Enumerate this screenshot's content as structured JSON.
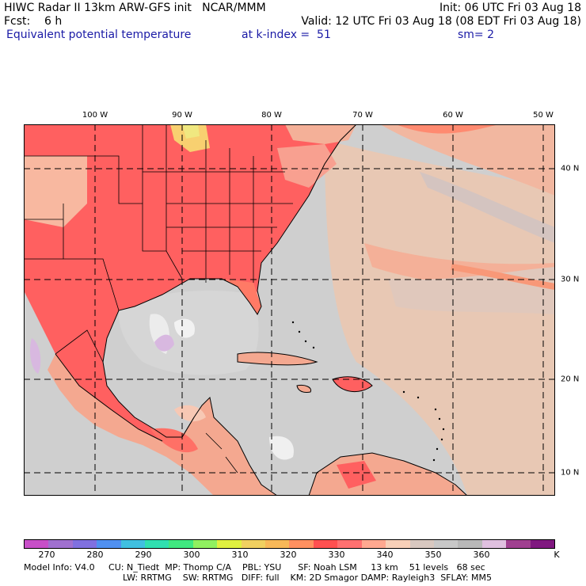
{
  "header": {
    "line1_left": "HIWC Radar II 13km ARW-GFS init   NCAR/MMM",
    "line1_right": "Init: 06 UTC Fri 03 Aug 18",
    "line2_left": "Fcst:    6 h",
    "line2_right": "Valid: 12 UTC Fri 03 Aug 18 (08 EDT Fri 03 Aug 18)",
    "field": "Equivalent potential temperature",
    "level": "at k-index =  51",
    "smooth": "sm= 2"
  },
  "axes": {
    "longitude_labels": [
      "100 W",
      "90 W",
      "80 W",
      "70 W",
      "60 W",
      "50 W"
    ],
    "latitude_labels": [
      "40 N",
      "30 N",
      "20 N",
      "10 N"
    ]
  },
  "colorbar": {
    "colors": [
      "#c84fc8",
      "#a070d0",
      "#8070e0",
      "#5090f0",
      "#40c0e0",
      "#30e0b0",
      "#40e880",
      "#90f060",
      "#e0f040",
      "#f0d060",
      "#f8b858",
      "#ff9060",
      "#ff5050",
      "#ff7070",
      "#ffa890",
      "#f8d0b8",
      "#d8c8c0",
      "#c8c8c8",
      "#b8b8b8",
      "#e0c0e0",
      "#a04090",
      "#801880"
    ],
    "ticks": [
      "270",
      "280",
      "290",
      "300",
      "310",
      "320",
      "330",
      "340",
      "350",
      "360",
      "K"
    ]
  },
  "footer": {
    "line1": "Model Info: V4.0     CU: N_Tiedt  MP: Thomp C/A    PBL: YSU      SF: Noah LSM     13 km    51 levels   68 sec",
    "line2": "LW: RRTMG    SW: RRTMG   DIFF: full    KM: 2D Smagor DAMP: Rayleigh3  SFLAY: MM5"
  }
}
